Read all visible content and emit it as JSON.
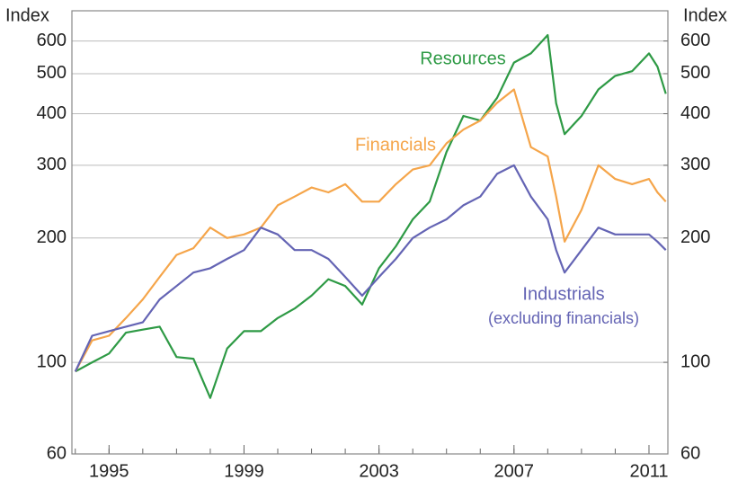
{
  "chart_data": {
    "type": "line",
    "y_label": "Index",
    "y2_label": "Index",
    "x": [
      1994,
      1994.5,
      1995,
      1995.5,
      1996,
      1996.5,
      1997,
      1997.5,
      1998,
      1998.5,
      1999,
      1999.5,
      2000,
      2000.5,
      2001,
      2001.5,
      2002,
      2002.5,
      2003,
      2003.5,
      2004,
      2004.5,
      2005,
      2005.5,
      2006,
      2006.5,
      2007,
      2007.5,
      2008,
      2008.25,
      2008.5,
      2009,
      2009.5,
      2010,
      2010.5,
      2011,
      2011.25,
      2011.5
    ],
    "series": [
      {
        "name": "Resources",
        "color": "#2e9a45",
        "values": [
          95,
          100,
          105,
          118,
          120,
          122,
          103,
          102,
          82,
          108,
          119,
          119,
          128,
          135,
          145,
          159,
          153,
          138,
          169,
          191,
          222,
          245,
          323,
          395,
          385,
          437,
          532,
          560,
          620,
          424,
          357,
          395,
          458,
          494,
          507,
          560,
          520,
          447
        ]
      },
      {
        "name": "Financials",
        "color": "#f5a54a",
        "values": [
          95,
          113,
          116,
          128,
          142,
          161,
          182,
          189,
          212,
          200,
          204,
          212,
          240,
          252,
          265,
          258,
          270,
          245,
          245,
          270,
          293,
          300,
          339,
          366,
          385,
          425,
          458,
          332,
          315,
          252,
          196,
          234,
          300,
          278,
          270,
          278,
          258,
          245
        ]
      },
      {
        "name": "Industrials",
        "color": "#6464b4",
        "values": [
          95,
          116,
          119,
          122,
          125,
          142,
          153,
          165,
          169,
          178,
          187,
          212,
          204,
          187,
          187,
          178,
          161,
          145,
          161,
          178,
          200,
          212,
          222,
          240,
          252,
          286,
          300,
          252,
          222,
          187,
          165,
          187,
          212,
          204,
          204,
          204,
          196,
          187
        ]
      }
    ],
    "annotations": [
      "(excluding financials)"
    ],
    "xlim": [
      1993.9,
      2011.56
    ],
    "xticks": [
      1995,
      1999,
      2003,
      2007,
      2011
    ],
    "xticks_minor": [
      1994,
      1995,
      1996,
      1997,
      1998,
      1999,
      2000,
      2001,
      2002,
      2003,
      2004,
      2005,
      2006,
      2007,
      2008,
      2009,
      2010,
      2011
    ],
    "ylim": [
      60,
      710
    ],
    "yticks": [
      60,
      100,
      200,
      300,
      400,
      500,
      600
    ],
    "y2lim": [
      60,
      710
    ],
    "y2ticks": [
      60,
      100,
      200,
      300,
      400,
      500,
      600
    ],
    "log_scale": true,
    "grid": true
  }
}
